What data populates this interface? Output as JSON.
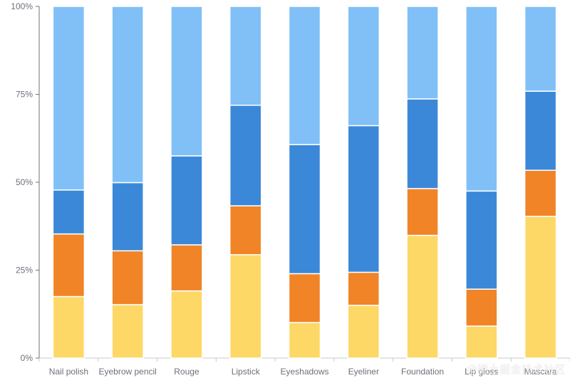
{
  "chart_data": {
    "type": "bar",
    "stacked": true,
    "normalized": true,
    "categories": [
      "Nail polish",
      "Eyebrow pencil",
      "Rouge",
      "Lipstick",
      "Eyeshadows",
      "Eyeliner",
      "Foundation",
      "Lip gloss",
      "Mascara"
    ],
    "series": [
      {
        "color": "#fdd867",
        "values": [
          17.5,
          15.2,
          19.1,
          29.4,
          10.1,
          15.0,
          34.9,
          9.1,
          40.3
        ]
      },
      {
        "color": "#f08427",
        "values": [
          17.8,
          15.3,
          13.1,
          13.9,
          13.9,
          9.4,
          13.3,
          10.5,
          13.1
        ]
      },
      {
        "color": "#3b88d8",
        "values": [
          12.5,
          19.4,
          25.3,
          28.6,
          36.7,
          41.7,
          25.5,
          27.9,
          22.5
        ]
      },
      {
        "color": "#80c0f7",
        "values": [
          52.2,
          50.1,
          42.5,
          28.1,
          39.3,
          33.9,
          26.3,
          52.5,
          24.1
        ]
      }
    ],
    "yaxis": {
      "ticks": [
        "0%",
        "25%",
        "50%",
        "75%",
        "100%"
      ],
      "ylim": [
        0,
        100
      ]
    },
    "grid": false,
    "legend": "none"
  },
  "watermark": "@稀土掘金技术社区"
}
